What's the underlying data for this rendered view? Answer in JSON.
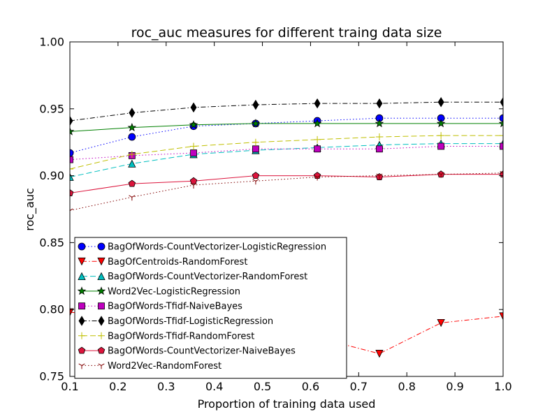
{
  "chart_data": {
    "type": "line",
    "title": "roc_auc measures for different traing data size",
    "xlabel": "Proportion of training data used",
    "ylabel": "roc_auc",
    "xlim": [
      0.1,
      1.0
    ],
    "ylim": [
      0.75,
      1.0
    ],
    "x_ticks": [
      "0.1",
      "0.2",
      "0.3",
      "0.4",
      "0.5",
      "0.6",
      "0.7",
      "0.8",
      "0.9",
      "1.0"
    ],
    "y_ticks": [
      "0.75",
      "0.80",
      "0.85",
      "0.90",
      "0.95",
      "1.00"
    ],
    "grid": false,
    "legend_position": "lower-left",
    "x": [
      0.1,
      0.229,
      0.357,
      0.486,
      0.614,
      0.743,
      0.871,
      1.0
    ],
    "series": [
      {
        "name": "BagOfWords-CountVectorizer-LogisticRegression",
        "color": "#0000ff",
        "marker": "circle",
        "dash": "dot",
        "values": [
          0.917,
          0.929,
          0.937,
          0.939,
          0.941,
          0.943,
          0.943,
          0.943
        ]
      },
      {
        "name": "BagOfCentroids-RandomForest",
        "color": "#ff0000",
        "marker": "triangle-down",
        "dash": "dashdot",
        "values": [
          0.798,
          0.793,
          0.787,
          0.783,
          0.779,
          0.767,
          0.79,
          0.795
        ]
      },
      {
        "name": "BagOfWords-CountVectorizer-RandomForest",
        "color": "#00bfbf",
        "marker": "triangle-up",
        "dash": "dashed",
        "values": [
          0.899,
          0.909,
          0.916,
          0.919,
          0.921,
          0.923,
          0.924,
          0.924
        ]
      },
      {
        "name": "Word2Vec-LogisticRegression",
        "color": "#008000",
        "marker": "star",
        "dash": "solid",
        "values": [
          0.933,
          0.936,
          0.938,
          0.939,
          0.939,
          0.939,
          0.939,
          0.939
        ]
      },
      {
        "name": "BagOfWords-Tfidf-NaiveBayes",
        "color": "#bf00bf",
        "marker": "square",
        "dash": "dotted",
        "values": [
          0.912,
          0.915,
          0.917,
          0.92,
          0.92,
          0.92,
          0.922,
          0.922
        ]
      },
      {
        "name": "BagOfWords-Tfidf-LogisticRegression",
        "color": "#000000",
        "marker": "diamond",
        "dash": "dashdot",
        "values": [
          0.941,
          0.947,
          0.951,
          0.953,
          0.954,
          0.954,
          0.955,
          0.955
        ]
      },
      {
        "name": "BagOfWords-Tfidf-RandomForest",
        "color": "#bfbf00",
        "marker": "plus",
        "dash": "dashed",
        "values": [
          0.905,
          0.916,
          0.922,
          0.925,
          0.927,
          0.929,
          0.93,
          0.93
        ]
      },
      {
        "name": "BagOfWords-CountVectorizer-NaiveBayes",
        "color": "#dc143c",
        "marker": "pentagon",
        "dash": "solid",
        "values": [
          0.887,
          0.894,
          0.896,
          0.9,
          0.9,
          0.899,
          0.901,
          0.901
        ]
      },
      {
        "name": "Word2Vec-RandomForest",
        "color": "#800000",
        "marker": "tri-down",
        "dash": "dotted",
        "values": [
          0.874,
          0.884,
          0.893,
          0.896,
          0.899,
          0.9,
          0.901,
          0.902
        ]
      }
    ]
  }
}
